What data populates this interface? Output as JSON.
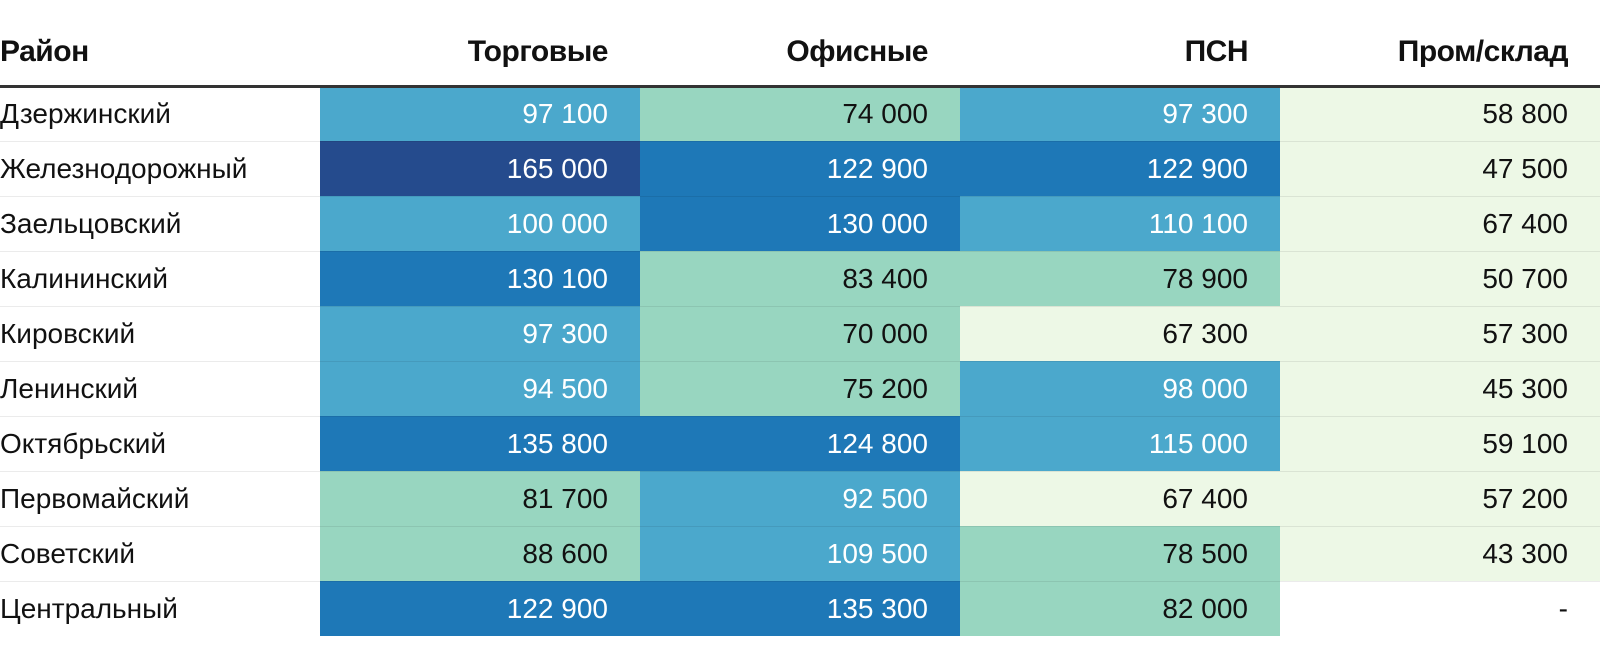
{
  "chart_data": {
    "type": "table",
    "title": "",
    "columns": [
      "Район",
      "Торговые",
      "Офисные",
      "ПСН",
      "Пром/склад"
    ],
    "rows": [
      {
        "district": "Дзержинский",
        "values": [
          "97 100",
          "74 000",
          "97 300",
          "58 800"
        ]
      },
      {
        "district": "Железнодорожный",
        "values": [
          "165 000",
          "122 900",
          "122 900",
          "47 500"
        ]
      },
      {
        "district": "Заельцовский",
        "values": [
          "100 000",
          "130 000",
          "110 100",
          "67 400"
        ]
      },
      {
        "district": "Калининский",
        "values": [
          "130 100",
          "83 400",
          "78 900",
          "50 700"
        ]
      },
      {
        "district": "Кировский",
        "values": [
          "97 300",
          "70 000",
          "67 300",
          "57 300"
        ]
      },
      {
        "district": "Ленинский",
        "values": [
          "94 500",
          "75 200",
          "98 000",
          "45 300"
        ]
      },
      {
        "district": "Октябрьский",
        "values": [
          "135 800",
          "124 800",
          "115 000",
          "59 100"
        ]
      },
      {
        "district": "Первомайский",
        "values": [
          "81 700",
          "92 500",
          "67 400",
          "57 200"
        ]
      },
      {
        "district": "Советский",
        "values": [
          "88 600",
          "109 500",
          "78 500",
          "43 300"
        ]
      },
      {
        "district": "Центральный",
        "values": [
          "122 900",
          "135 300",
          "82 000",
          "-"
        ]
      }
    ],
    "color_scale": {
      "type": "threshold",
      "thresholds": [
        70000,
        90000,
        120000,
        150000
      ],
      "colors": [
        "#edf8e6",
        "#98d6c0",
        "#4ba8cc",
        "#1e78b7",
        "#254b8d"
      ],
      "text_dark": "#111111",
      "text_light": "#ffffff",
      "empty_color": "#ffffff"
    }
  }
}
